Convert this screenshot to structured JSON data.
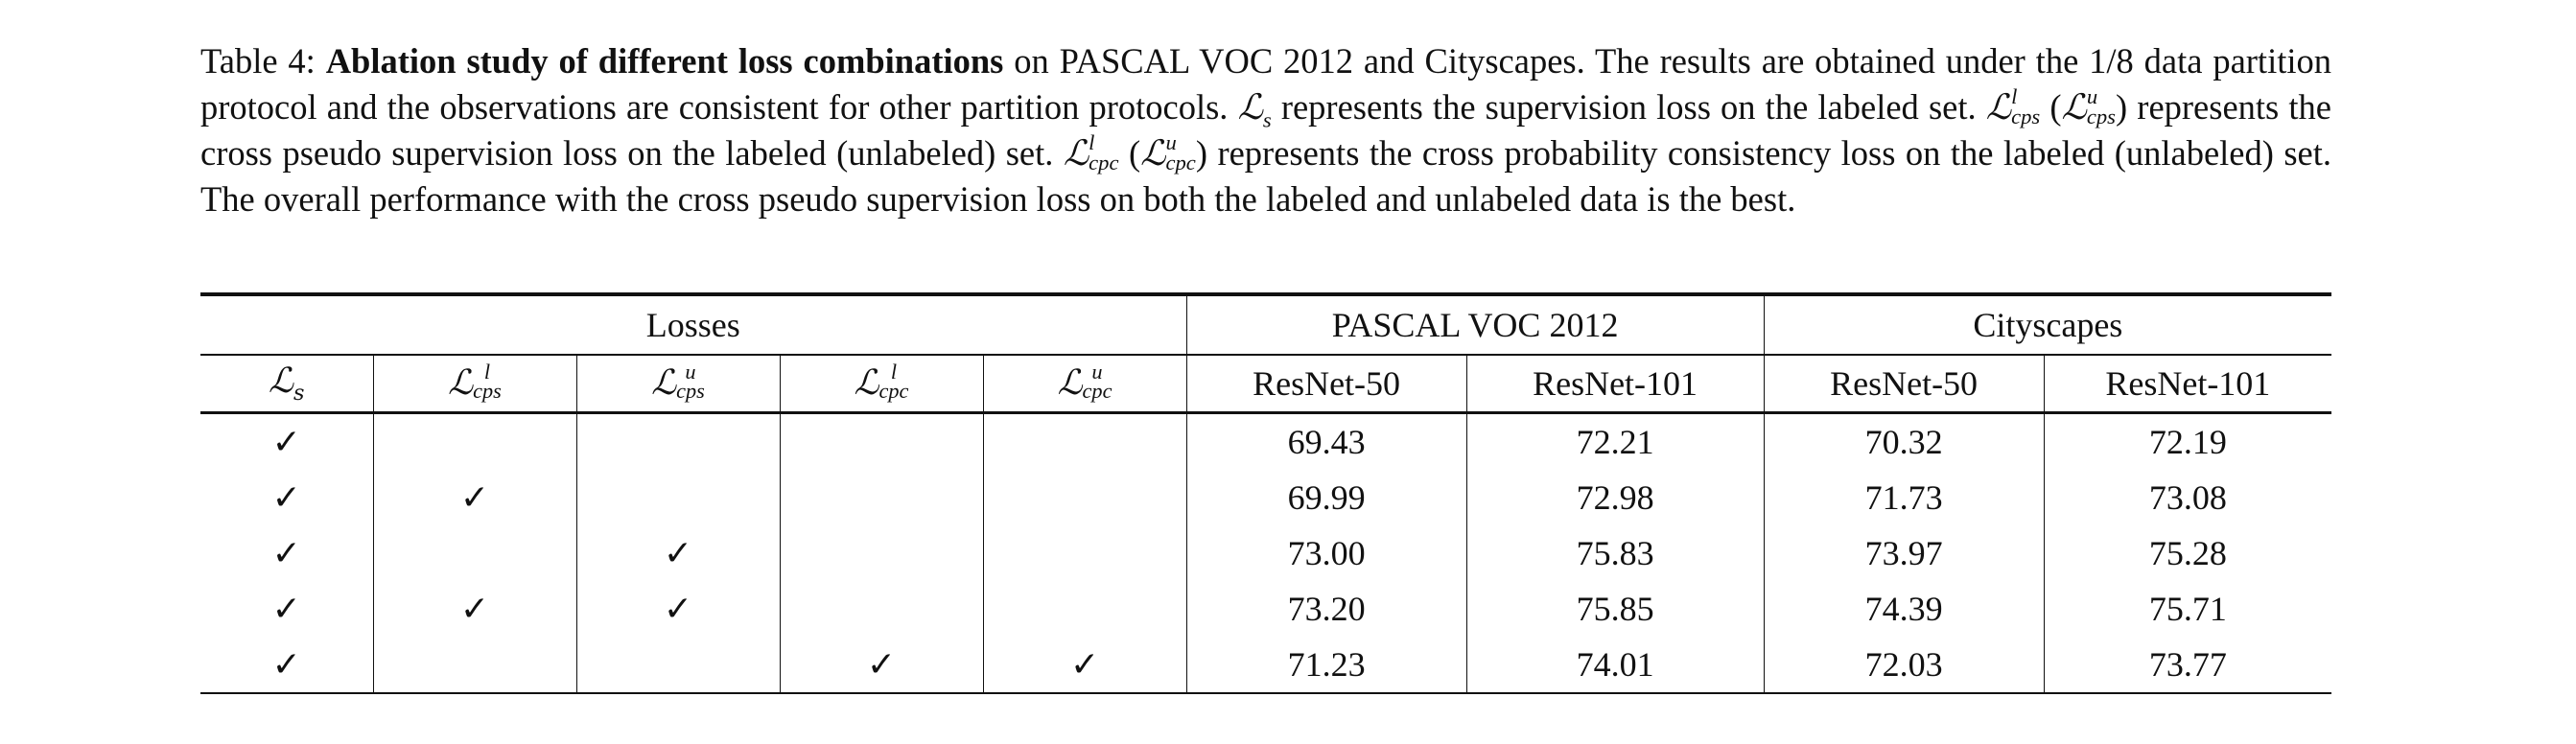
{
  "caption": {
    "label": "Table 4:",
    "title": "Ablation study of different loss combinations",
    "part1": " on PASCAL VOC 2012 and Cityscapes. The results are obtained under the 1/8 data partition protocol and the observations are consistent for other partition protocols. ",
    "part2": " represents the supervision loss on the labeled set. ",
    "part3": " represents the cross pseudo supervision loss on the labeled (unlabeled) set. ",
    "part4": " represents the cross probability consistency loss on the labeled (unlabeled) set. The overall performance with the cross pseudo supervision loss on both the labeled and unlabeled data is the best."
  },
  "table": {
    "group_headers": {
      "losses": "Losses",
      "pascal": "PASCAL VOC 2012",
      "cityscapes": "Cityscapes"
    },
    "column_headers": {
      "r50_a": "ResNet-50",
      "r101_a": "ResNet-101",
      "r50_b": "ResNet-50",
      "r101_b": "ResNet-101"
    },
    "check_glyph": "✓",
    "rows": [
      {
        "checks": [
          true,
          false,
          false,
          false,
          false
        ],
        "values": [
          "69.43",
          "72.21",
          "70.32",
          "72.19"
        ],
        "bold": false
      },
      {
        "checks": [
          true,
          true,
          false,
          false,
          false
        ],
        "values": [
          "69.99",
          "72.98",
          "71.73",
          "73.08"
        ],
        "bold": false
      },
      {
        "checks": [
          true,
          false,
          true,
          false,
          false
        ],
        "values": [
          "73.00",
          "75.83",
          "73.97",
          "75.28"
        ],
        "bold": false
      },
      {
        "checks": [
          true,
          true,
          true,
          false,
          false
        ],
        "values": [
          "73.20",
          "75.85",
          "74.39",
          "75.71"
        ],
        "bold": true
      },
      {
        "checks": [
          true,
          false,
          false,
          true,
          true
        ],
        "values": [
          "71.23",
          "74.01",
          "72.03",
          "73.77"
        ],
        "bold": false
      }
    ]
  }
}
